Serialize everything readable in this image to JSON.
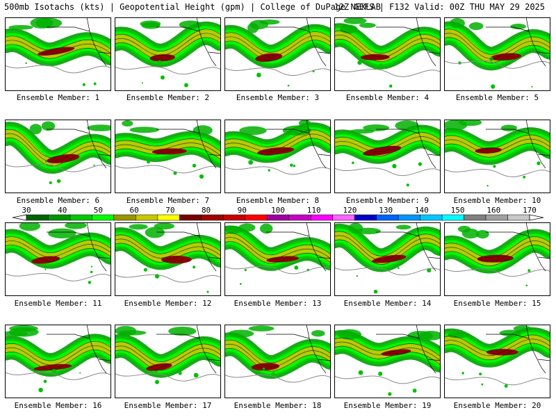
{
  "header": {
    "left": "500mb Isotachs (kts) | Geopotential Height (gpm) | College of DuPage NEXLAB",
    "right": "12Z GEFS | F132 Valid: 00Z THU MAY 29 2025"
  },
  "members": [
    "Ensemble Member: 1",
    "Ensemble Member: 2",
    "Ensemble Member: 3",
    "Ensemble Member: 4",
    "Ensemble Member: 5",
    "Ensemble Member: 6",
    "Ensemble Member: 7",
    "Ensemble Member: 8",
    "Ensemble Member: 9",
    "Ensemble Member: 10",
    "Ensemble Member: 11",
    "Ensemble Member: 12",
    "Ensemble Member: 13",
    "Ensemble Member: 14",
    "Ensemble Member: 15",
    "Ensemble Member: 16",
    "Ensemble Member: 17",
    "Ensemble Member: 18",
    "Ensemble Member: 19",
    "Ensemble Member: 20"
  ],
  "colorbar": {
    "labels": [
      "30",
      "40",
      "50",
      "60",
      "70",
      "80",
      "90",
      "100",
      "110",
      "120",
      "130",
      "140",
      "150",
      "160",
      "170"
    ],
    "colors": [
      "#006400",
      "#009600",
      "#00c800",
      "#00ff00",
      "#969600",
      "#c8c800",
      "#ffff00",
      "#780000",
      "#a00000",
      "#c80000",
      "#ff0000",
      "#a000a0",
      "#c800c8",
      "#ff00ff",
      "#ff64ff",
      "#0000c8",
      "#0064ff",
      "#0096ff",
      "#00c8ff",
      "#00ffff",
      "#808080",
      "#a0a0a0",
      "#c8c8c8"
    ]
  }
}
